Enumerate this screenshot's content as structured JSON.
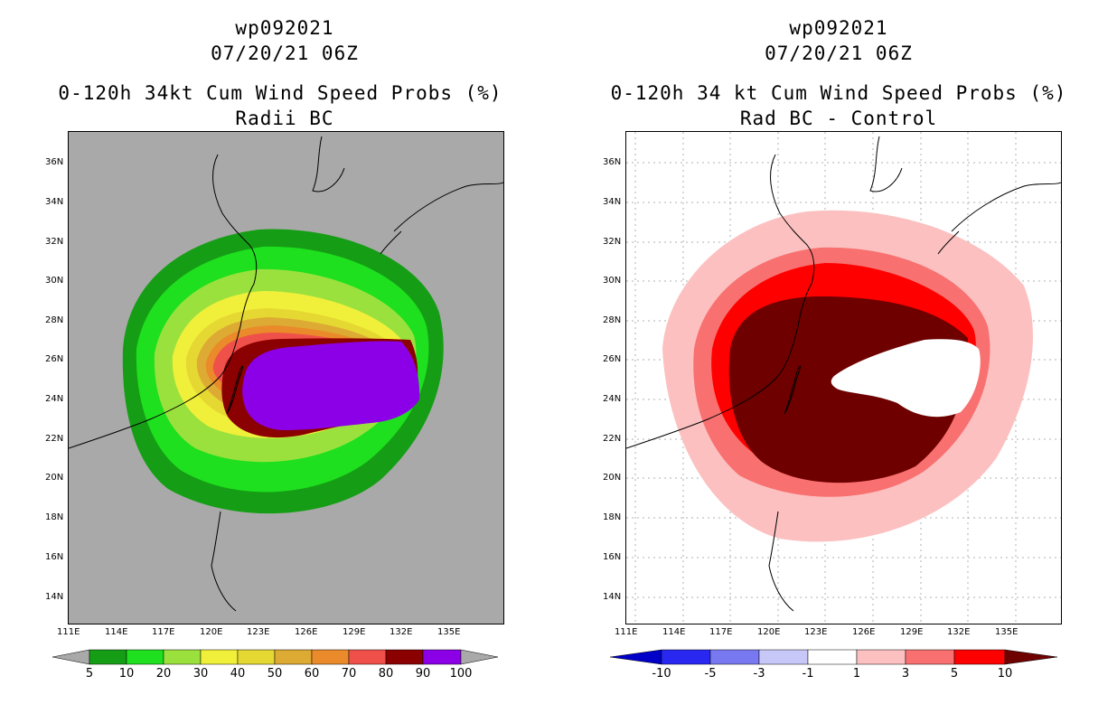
{
  "left_panel": {
    "storm_id": "wp092021",
    "date": "07/20/21 06Z",
    "title": "0-120h 34kt Cum Wind Speed Probs (%)",
    "subtitle": "Radii BC",
    "colorbar": {
      "labels": [
        "5",
        "10",
        "20",
        "30",
        "40",
        "50",
        "60",
        "70",
        "80",
        "90",
        "100"
      ],
      "colors": [
        "#159e15",
        "#1ee01e",
        "#9be13d",
        "#f0f03a",
        "#e6d832",
        "#ddaa33",
        "#ea8a2a",
        "#f0504a",
        "#8b0000",
        "#8b00e6"
      ]
    }
  },
  "right_panel": {
    "storm_id": "wp092021",
    "date": "07/20/21 06Z",
    "title": "0-120h 34 kt Cum Wind Speed Probs (%)",
    "subtitle": "Rad BC - Control",
    "colorbar": {
      "labels": [
        "-10",
        "-5",
        "-3",
        "-1",
        "1",
        "3",
        "5",
        "10"
      ],
      "colors": [
        "#0000c8",
        "#2828f0",
        "#7878f0",
        "#c8c8f8",
        "#ffffff",
        "#fcc0c0",
        "#f87070",
        "#ff0000",
        "#6e0000"
      ]
    }
  },
  "axes": {
    "lat_labels": [
      "36N",
      "34N",
      "32N",
      "30N",
      "28N",
      "26N",
      "24N",
      "22N",
      "20N",
      "18N",
      "16N",
      "14N"
    ],
    "lon_labels": [
      "111E",
      "114E",
      "117E",
      "120E",
      "123E",
      "126E",
      "129E",
      "132E",
      "135E"
    ]
  },
  "colors": {
    "ocean_gray": "#a9a9a9"
  }
}
